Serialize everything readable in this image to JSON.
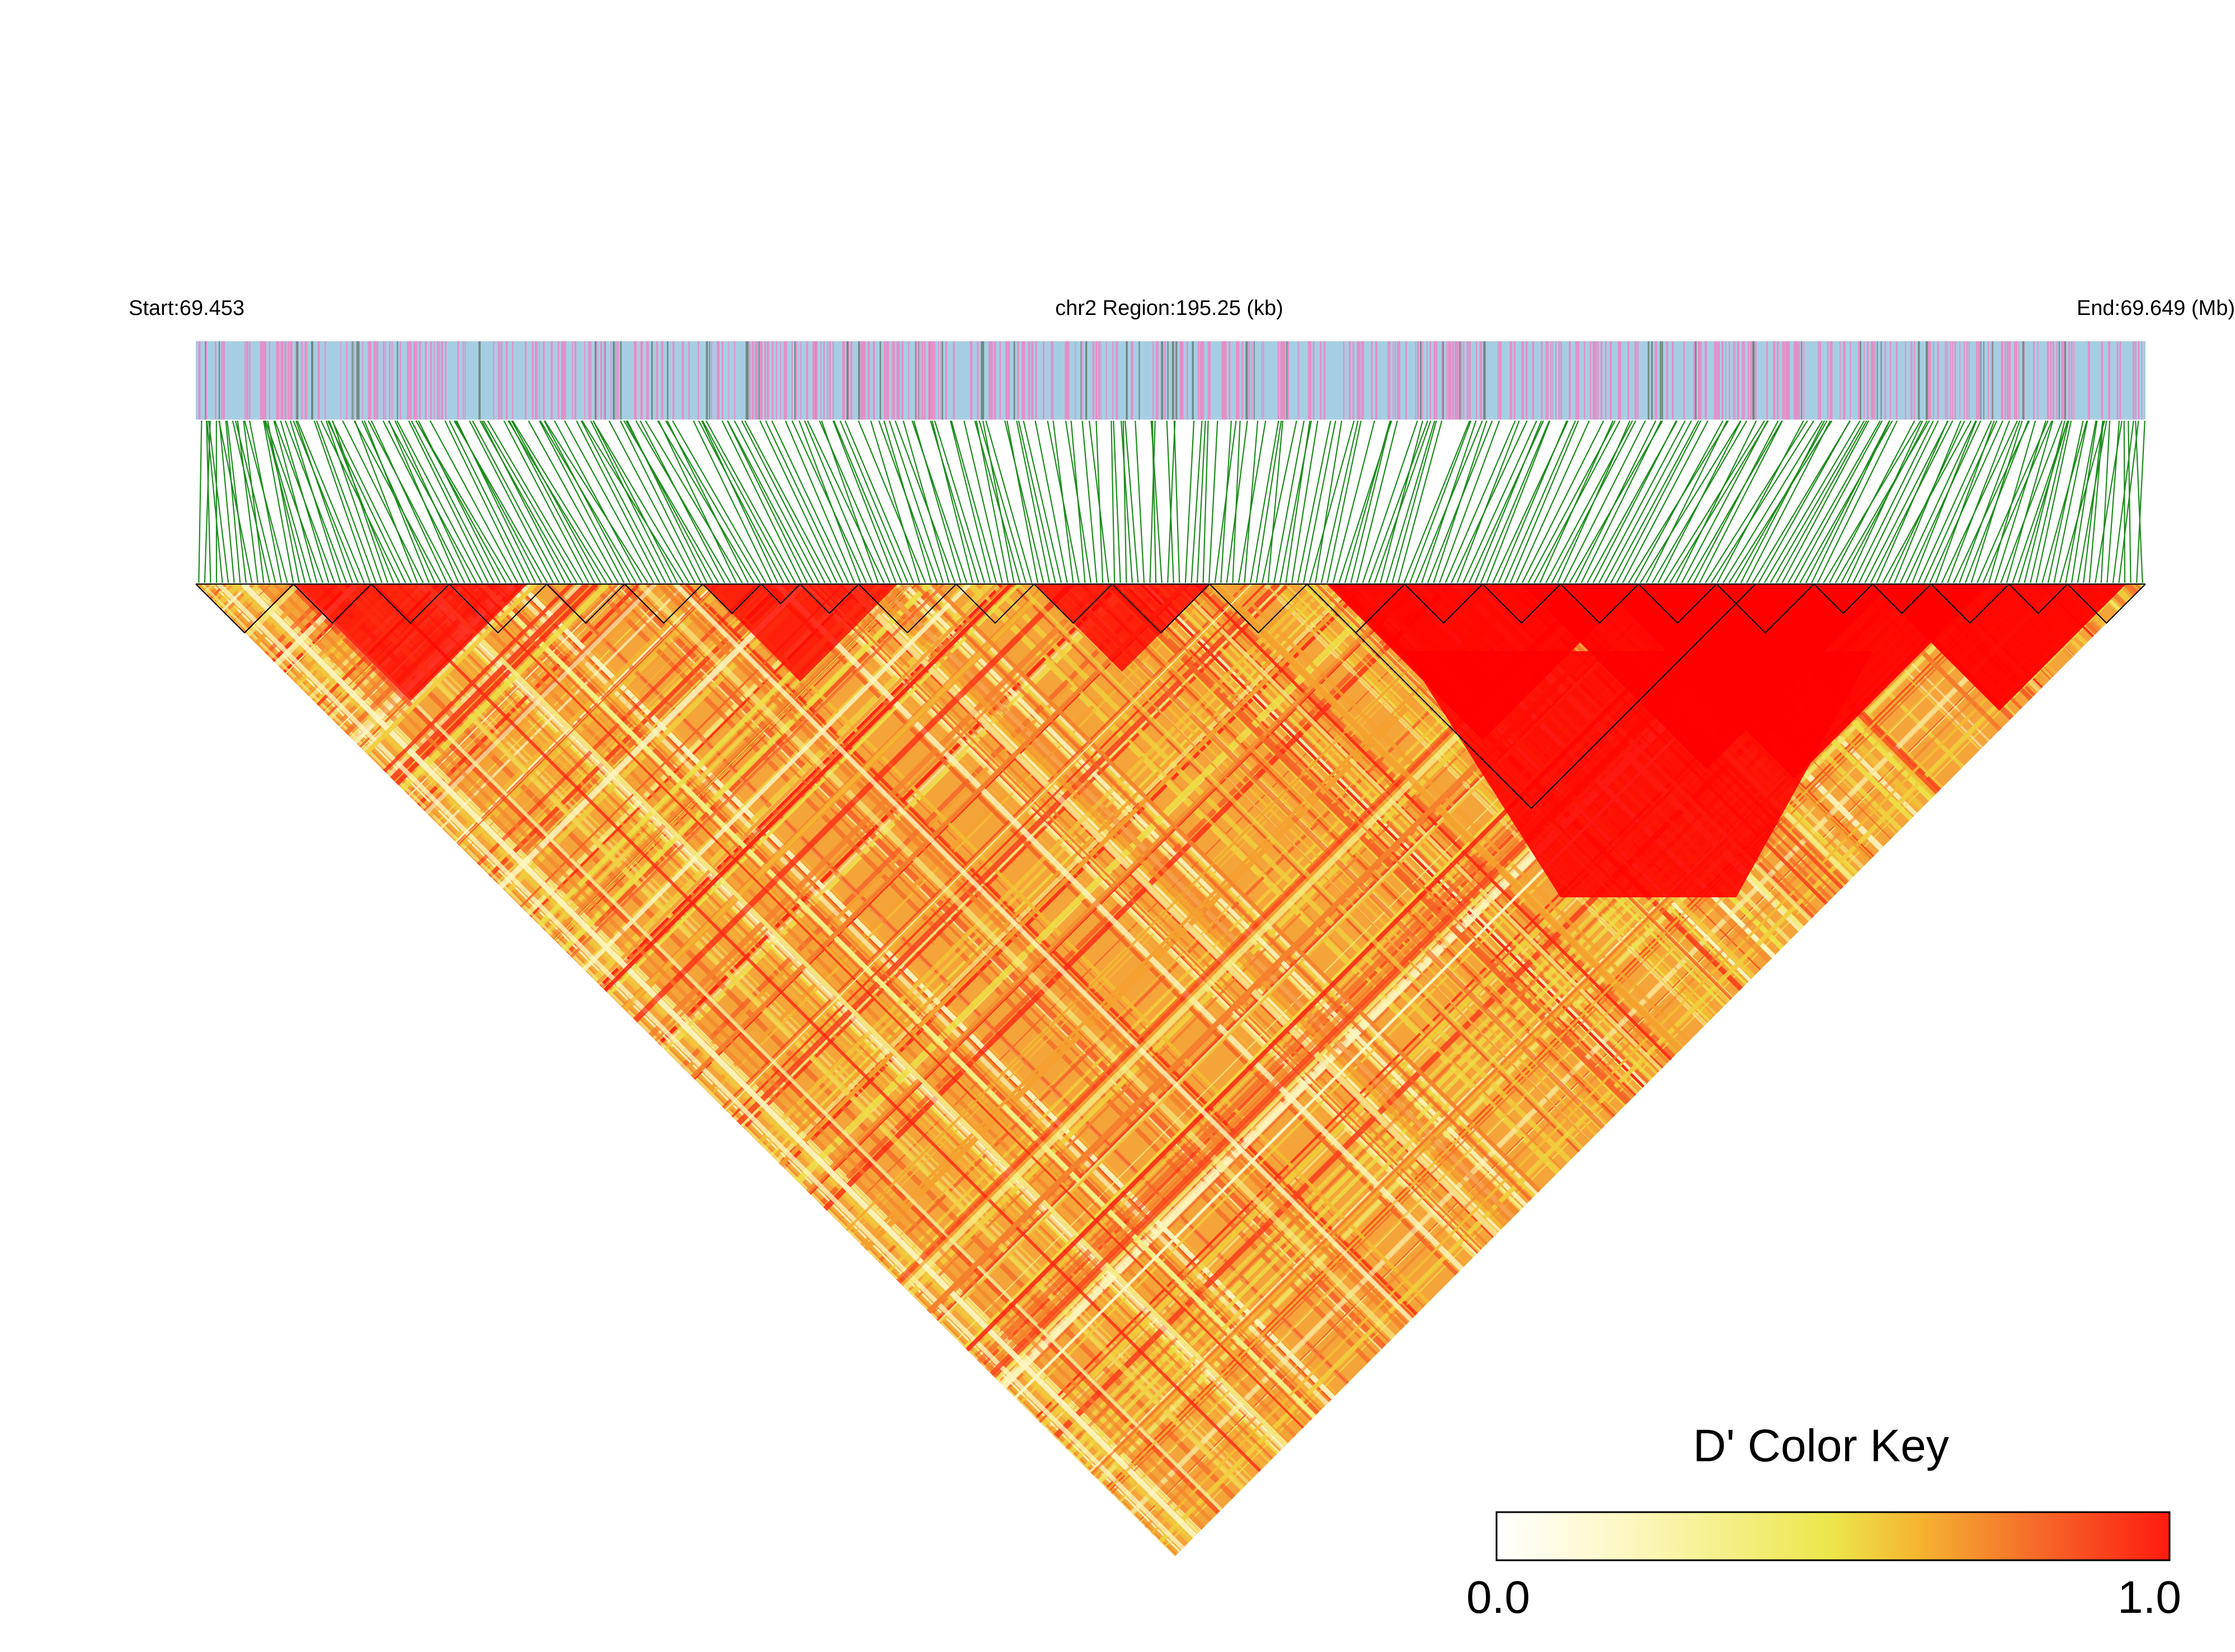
{
  "header": {
    "start_label": "Start:69.453",
    "region_label": "chr2 Region:195.25 (kb)",
    "end_label": "End:69.649 (Mb)"
  },
  "chart_data": {
    "type": "heatmap",
    "subtype": "linkage-disequilibrium triangle",
    "metric": "D'",
    "chromosome": "chr2",
    "start_mb": 69.453,
    "end_mb": 69.649,
    "region_kb": 195.25,
    "value_range": [
      0.0,
      1.0
    ],
    "color_scale": [
      "#ffffff",
      "#fdf7c0",
      "#ece64a",
      "#f5b731",
      "#f56b2a",
      "#ff1a0f"
    ],
    "track_colors": {
      "snp_bar_a": "#a6cee3",
      "snp_bar_b": "#e58ec7",
      "snp_bar_c": "#6f8a80",
      "connector": "#1e8c1e"
    },
    "block_color": "#ff0000",
    "legend": {
      "title": "D' Color Key",
      "min_label": "0.0",
      "max_label": "1.0",
      "placement": "bottom-right"
    }
  }
}
